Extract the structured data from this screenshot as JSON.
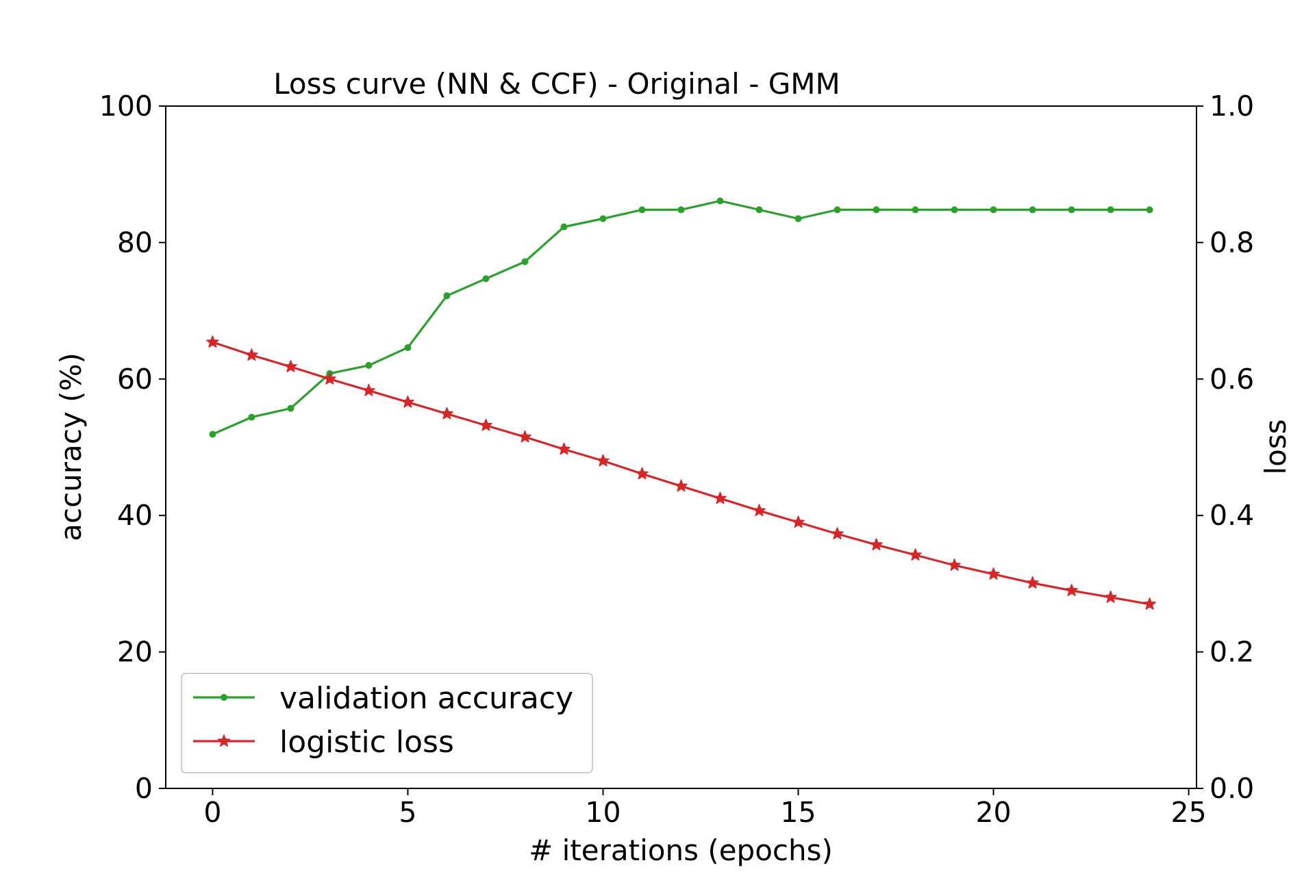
{
  "chart_data": {
    "type": "line",
    "title": "Loss curve (NN & CCF) - Original - GMM",
    "xlabel": "# iterations (epochs)",
    "ylabel_left": "accuracy (%)",
    "ylabel_right": "loss",
    "xlim": [
      -1.2,
      25.2
    ],
    "ylim_left": [
      0,
      100
    ],
    "ylim_right": [
      0.0,
      1.0
    ],
    "x_ticks": [
      "0",
      "5",
      "10",
      "15",
      "20",
      "25"
    ],
    "y_left_ticks": [
      "0",
      "20",
      "40",
      "60",
      "80",
      "100"
    ],
    "y_right_ticks": [
      "0.0",
      "0.2",
      "0.4",
      "0.6",
      "0.8",
      "1.0"
    ],
    "grid": false,
    "legend_position": "lower-left",
    "x": [
      0,
      1,
      2,
      3,
      4,
      5,
      6,
      7,
      8,
      9,
      10,
      11,
      12,
      13,
      14,
      15,
      16,
      17,
      18,
      19,
      20,
      21,
      22,
      23,
      24
    ],
    "series": [
      {
        "name": "validation accuracy",
        "axis": "left",
        "color": "#2ca02c",
        "marker": "dot",
        "values": [
          51.9,
          54.4,
          55.7,
          60.8,
          62.0,
          64.6,
          72.2,
          74.7,
          77.2,
          82.3,
          83.5,
          84.8,
          84.8,
          86.1,
          84.8,
          83.5,
          84.8,
          84.8,
          84.8,
          84.8,
          84.8,
          84.8,
          84.8,
          84.8,
          84.8
        ]
      },
      {
        "name": "logistic loss",
        "axis": "right",
        "color": "#d62728",
        "marker": "star",
        "values": [
          0.654,
          0.635,
          0.618,
          0.6,
          0.583,
          0.566,
          0.549,
          0.532,
          0.515,
          0.497,
          0.48,
          0.461,
          0.443,
          0.425,
          0.407,
          0.39,
          0.373,
          0.357,
          0.342,
          0.327,
          0.314,
          0.301,
          0.29,
          0.28,
          0.27
        ]
      }
    ]
  }
}
